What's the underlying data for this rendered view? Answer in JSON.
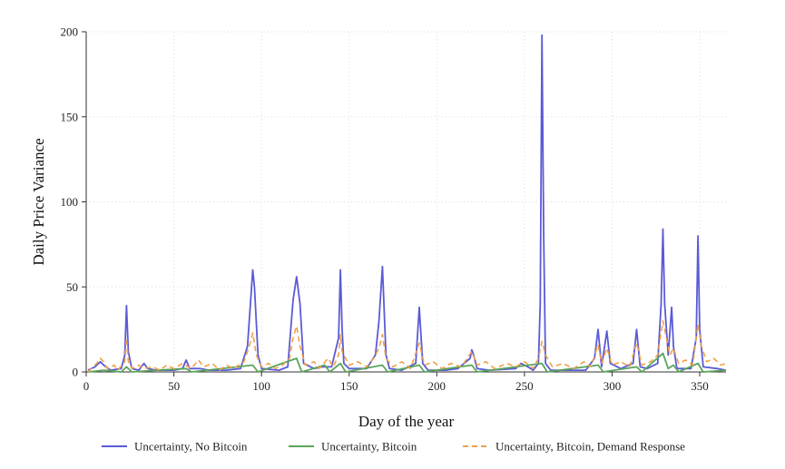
{
  "chart_data": {
    "type": "line",
    "xlabel": "Day of the year",
    "ylabel": "Daily Price Variance",
    "xlim": [
      0,
      365
    ],
    "ylim": [
      0,
      200
    ],
    "xticks": [
      0,
      50,
      100,
      150,
      200,
      250,
      300,
      350
    ],
    "yticks": [
      0,
      50,
      100,
      150,
      200
    ],
    "grid": true,
    "legend_position": "bottom",
    "series": [
      {
        "name": "Uncertainty, No Bitcoin",
        "color": "#5b5bd6",
        "style": "solid",
        "points": [
          [
            1,
            1
          ],
          [
            5,
            3
          ],
          [
            8,
            6
          ],
          [
            10,
            4
          ],
          [
            14,
            1
          ],
          [
            20,
            2
          ],
          [
            22,
            10
          ],
          [
            23,
            39
          ],
          [
            24,
            12
          ],
          [
            26,
            2
          ],
          [
            30,
            1
          ],
          [
            33,
            5
          ],
          [
            35,
            2
          ],
          [
            40,
            1
          ],
          [
            50,
            1
          ],
          [
            55,
            2
          ],
          [
            57,
            7
          ],
          [
            59,
            2
          ],
          [
            65,
            2
          ],
          [
            70,
            1
          ],
          [
            80,
            1
          ],
          [
            88,
            2
          ],
          [
            92,
            15
          ],
          [
            94,
            45
          ],
          [
            95,
            60
          ],
          [
            96,
            50
          ],
          [
            98,
            10
          ],
          [
            100,
            2
          ],
          [
            110,
            1
          ],
          [
            115,
            3
          ],
          [
            118,
            42
          ],
          [
            120,
            56
          ],
          [
            122,
            40
          ],
          [
            124,
            5
          ],
          [
            130,
            2
          ],
          [
            135,
            3
          ],
          [
            140,
            3
          ],
          [
            144,
            20
          ],
          [
            145,
            60
          ],
          [
            146,
            25
          ],
          [
            147,
            5
          ],
          [
            150,
            2
          ],
          [
            160,
            2
          ],
          [
            165,
            10
          ],
          [
            167,
            30
          ],
          [
            169,
            62
          ],
          [
            171,
            10
          ],
          [
            173,
            2
          ],
          [
            180,
            1
          ],
          [
            188,
            5
          ],
          [
            190,
            38
          ],
          [
            192,
            5
          ],
          [
            195,
            1
          ],
          [
            205,
            1
          ],
          [
            212,
            2
          ],
          [
            219,
            8
          ],
          [
            220,
            13
          ],
          [
            221,
            10
          ],
          [
            223,
            2
          ],
          [
            230,
            1
          ],
          [
            245,
            2
          ],
          [
            248,
            5
          ],
          [
            252,
            3
          ],
          [
            255,
            1
          ],
          [
            258,
            5
          ],
          [
            259,
            40
          ],
          [
            260,
            198
          ],
          [
            261,
            80
          ],
          [
            262,
            5
          ],
          [
            265,
            1
          ],
          [
            270,
            1
          ],
          [
            285,
            1
          ],
          [
            290,
            8
          ],
          [
            292,
            25
          ],
          [
            294,
            3
          ],
          [
            297,
            24
          ],
          [
            299,
            5
          ],
          [
            305,
            2
          ],
          [
            312,
            5
          ],
          [
            314,
            25
          ],
          [
            316,
            3
          ],
          [
            320,
            2
          ],
          [
            326,
            5
          ],
          [
            328,
            40
          ],
          [
            329,
            84
          ],
          [
            330,
            40
          ],
          [
            332,
            10
          ],
          [
            334,
            38
          ],
          [
            335,
            15
          ],
          [
            337,
            2
          ],
          [
            345,
            2
          ],
          [
            348,
            20
          ],
          [
            349,
            80
          ],
          [
            350,
            25
          ],
          [
            352,
            3
          ],
          [
            360,
            2
          ],
          [
            365,
            1
          ]
        ]
      },
      {
        "name": "Uncertainty, Bitcoin",
        "color": "#5aa55a",
        "style": "solid",
        "points": [
          [
            1,
            0
          ],
          [
            10,
            1
          ],
          [
            20,
            0
          ],
          [
            23,
            3
          ],
          [
            26,
            0
          ],
          [
            40,
            1
          ],
          [
            57,
            2
          ],
          [
            60,
            0
          ],
          [
            95,
            4
          ],
          [
            98,
            0
          ],
          [
            120,
            8
          ],
          [
            123,
            0
          ],
          [
            136,
            4
          ],
          [
            139,
            0
          ],
          [
            145,
            5
          ],
          [
            148,
            0
          ],
          [
            169,
            4
          ],
          [
            172,
            0
          ],
          [
            190,
            4
          ],
          [
            193,
            0
          ],
          [
            220,
            4
          ],
          [
            223,
            0
          ],
          [
            260,
            5
          ],
          [
            263,
            0
          ],
          [
            292,
            4
          ],
          [
            295,
            0
          ],
          [
            314,
            3
          ],
          [
            317,
            0
          ],
          [
            329,
            11
          ],
          [
            332,
            2
          ],
          [
            335,
            4
          ],
          [
            338,
            0
          ],
          [
            349,
            5
          ],
          [
            352,
            0
          ],
          [
            365,
            1
          ]
        ]
      },
      {
        "name": "Uncertainty, Bitcoin, Demand Response",
        "color": "#f0a14a",
        "style": "dashed",
        "points": [
          [
            1,
            0
          ],
          [
            4,
            3
          ],
          [
            6,
            5
          ],
          [
            8,
            8
          ],
          [
            10,
            6
          ],
          [
            12,
            2
          ],
          [
            16,
            4
          ],
          [
            18,
            1
          ],
          [
            22,
            6
          ],
          [
            23,
            20
          ],
          [
            24,
            6
          ],
          [
            26,
            2
          ],
          [
            30,
            4
          ],
          [
            33,
            2
          ],
          [
            38,
            3
          ],
          [
            42,
            1
          ],
          [
            46,
            4
          ],
          [
            50,
            2
          ],
          [
            55,
            5
          ],
          [
            60,
            2
          ],
          [
            64,
            7
          ],
          [
            67,
            3
          ],
          [
            72,
            5
          ],
          [
            76,
            1
          ],
          [
            80,
            4
          ],
          [
            84,
            2
          ],
          [
            90,
            6
          ],
          [
            93,
            15
          ],
          [
            95,
            23
          ],
          [
            97,
            10
          ],
          [
            100,
            3
          ],
          [
            104,
            5
          ],
          [
            108,
            2
          ],
          [
            112,
            4
          ],
          [
            116,
            8
          ],
          [
            118,
            20
          ],
          [
            120,
            27
          ],
          [
            122,
            15
          ],
          [
            125,
            4
          ],
          [
            130,
            6
          ],
          [
            133,
            2
          ],
          [
            138,
            8
          ],
          [
            141,
            3
          ],
          [
            144,
            10
          ],
          [
            145,
            22
          ],
          [
            146,
            12
          ],
          [
            150,
            4
          ],
          [
            155,
            6
          ],
          [
            160,
            3
          ],
          [
            164,
            8
          ],
          [
            167,
            14
          ],
          [
            169,
            22
          ],
          [
            171,
            8
          ],
          [
            175,
            3
          ],
          [
            180,
            6
          ],
          [
            185,
            2
          ],
          [
            190,
            17
          ],
          [
            193,
            4
          ],
          [
            198,
            6
          ],
          [
            203,
            2
          ],
          [
            208,
            5
          ],
          [
            214,
            3
          ],
          [
            220,
            12
          ],
          [
            223,
            4
          ],
          [
            228,
            6
          ],
          [
            233,
            2
          ],
          [
            240,
            5
          ],
          [
            245,
            3
          ],
          [
            250,
            6
          ],
          [
            255,
            2
          ],
          [
            258,
            8
          ],
          [
            260,
            18
          ],
          [
            262,
            10
          ],
          [
            266,
            3
          ],
          [
            272,
            5
          ],
          [
            278,
            2
          ],
          [
            284,
            6
          ],
          [
            288,
            3
          ],
          [
            292,
            16
          ],
          [
            294,
            5
          ],
          [
            297,
            14
          ],
          [
            300,
            4
          ],
          [
            305,
            6
          ],
          [
            310,
            3
          ],
          [
            314,
            17
          ],
          [
            317,
            4
          ],
          [
            322,
            6
          ],
          [
            326,
            10
          ],
          [
            329,
            30
          ],
          [
            331,
            20
          ],
          [
            333,
            10
          ],
          [
            335,
            14
          ],
          [
            338,
            5
          ],
          [
            342,
            7
          ],
          [
            346,
            4
          ],
          [
            349,
            28
          ],
          [
            351,
            15
          ],
          [
            354,
            6
          ],
          [
            358,
            8
          ],
          [
            362,
            4
          ],
          [
            365,
            5
          ]
        ]
      }
    ]
  }
}
